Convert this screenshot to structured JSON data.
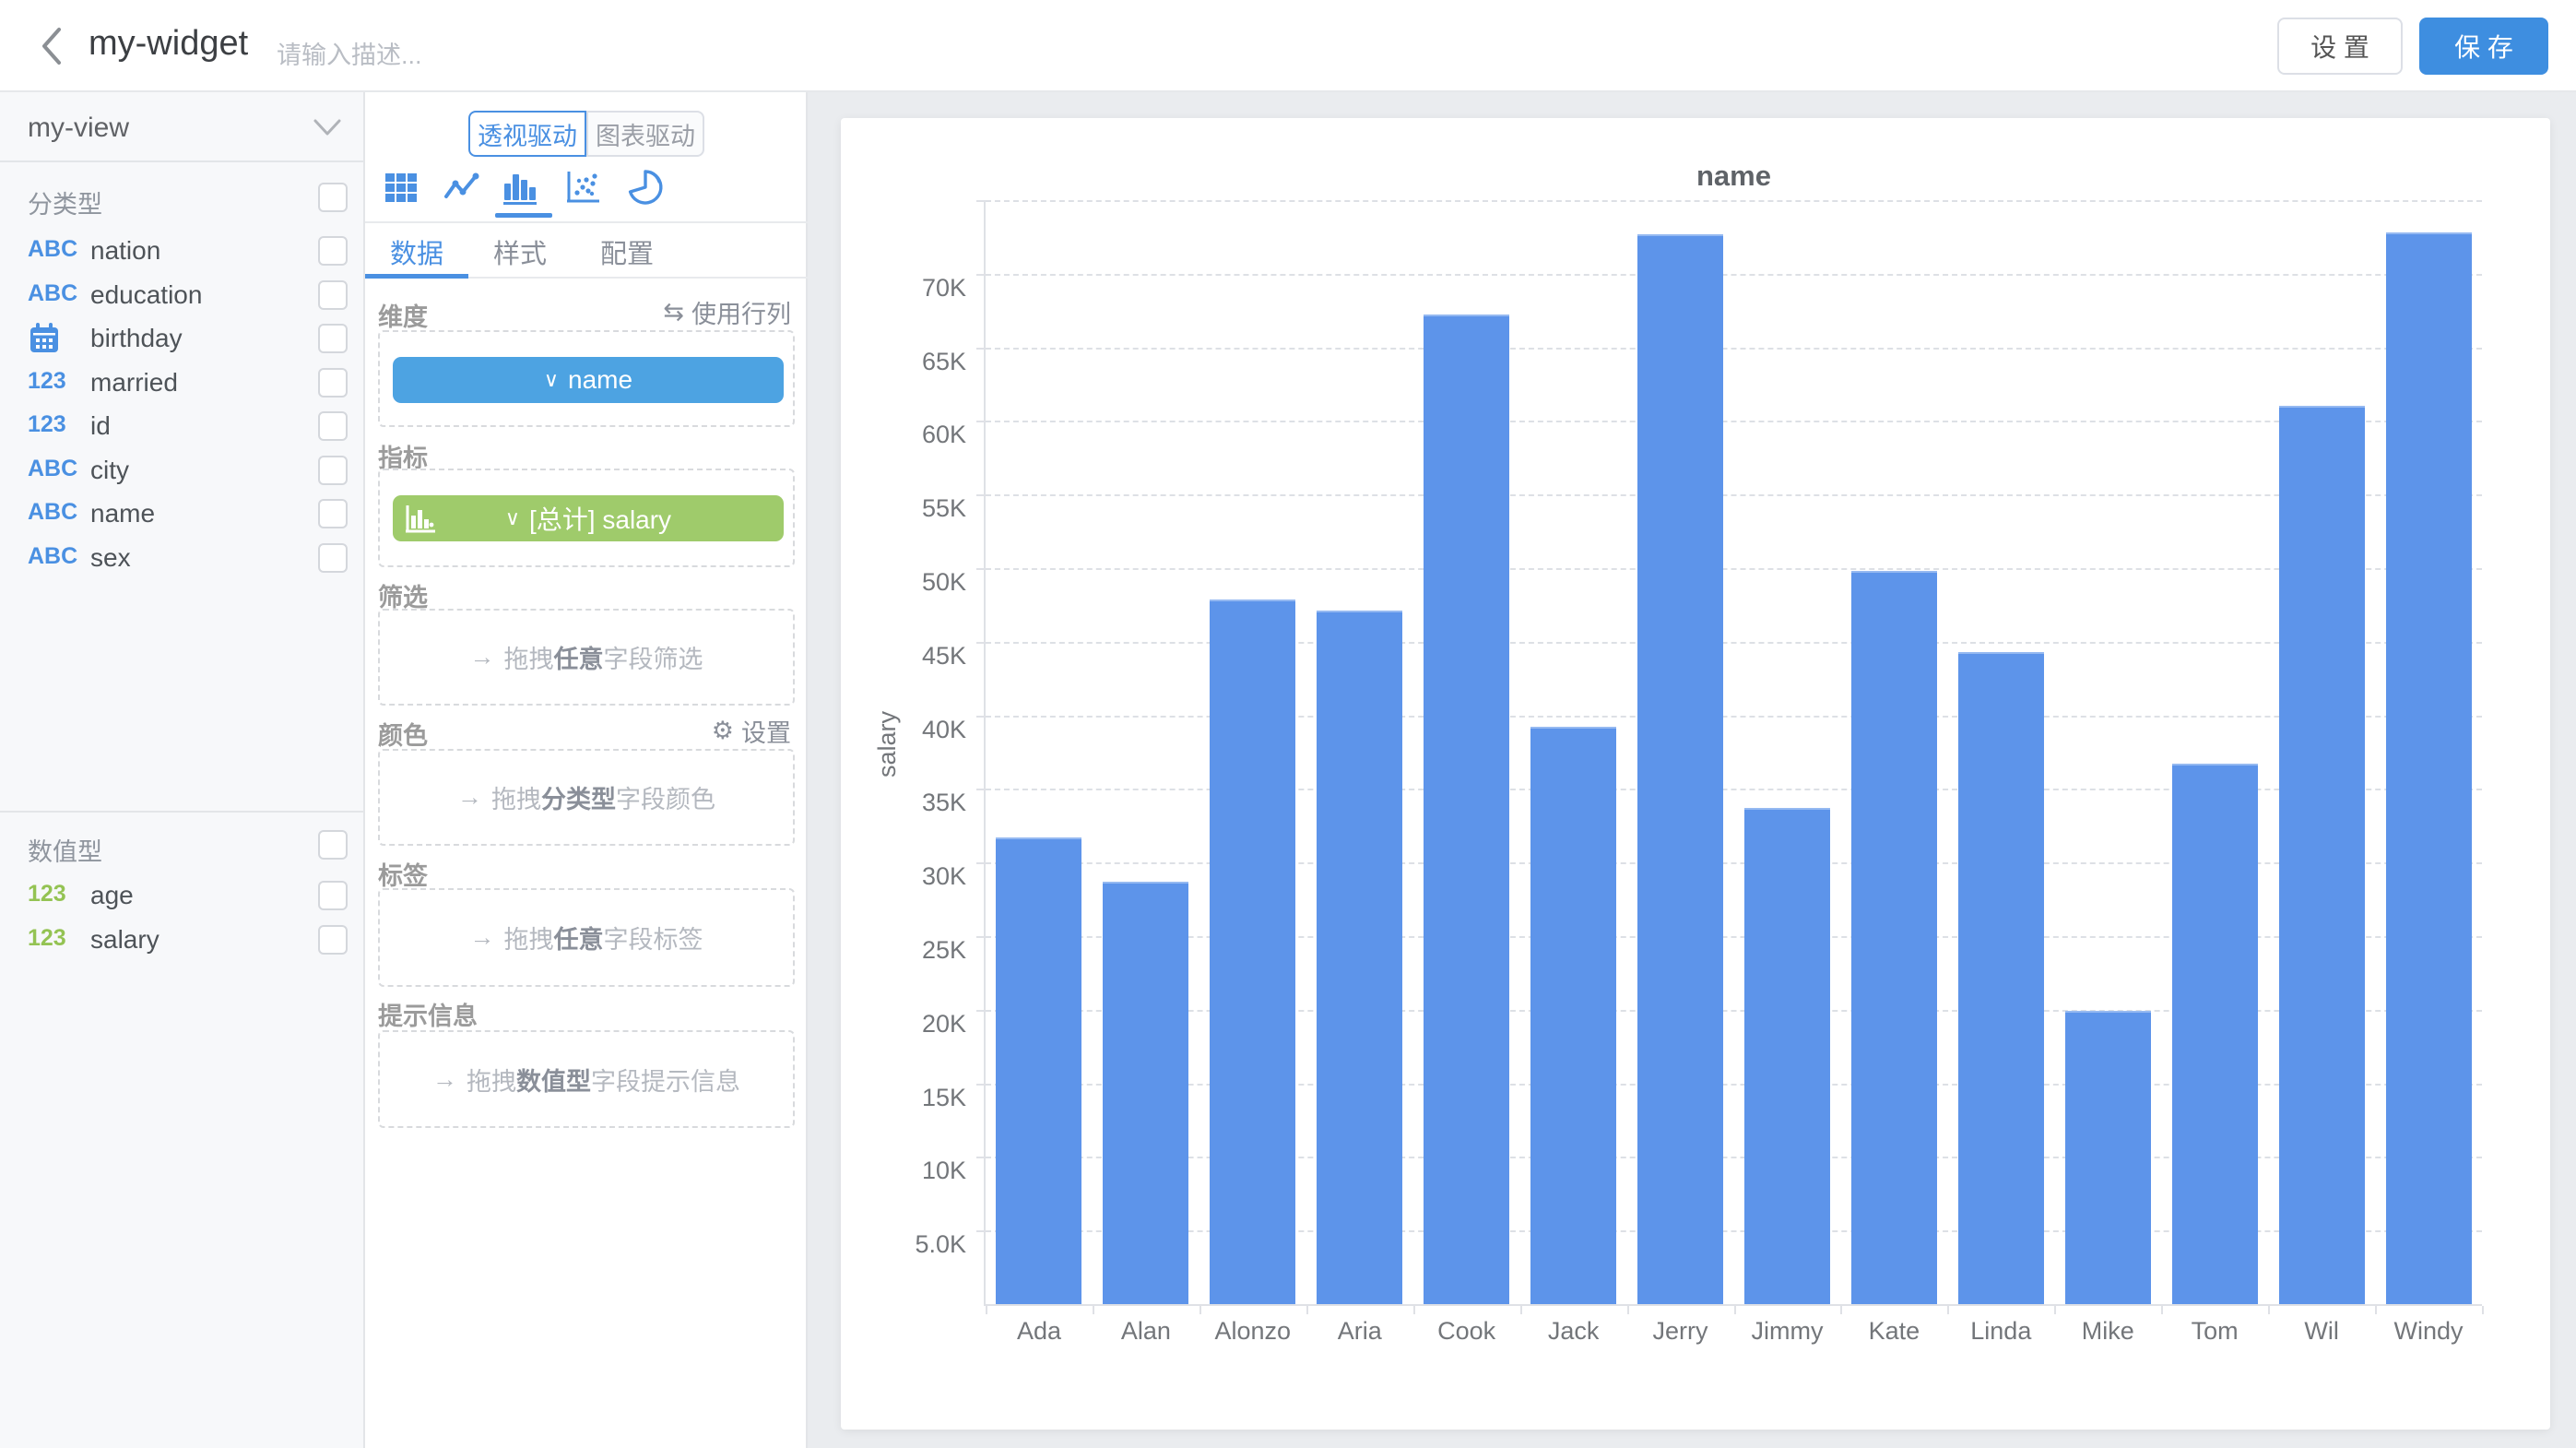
{
  "topbar": {
    "title": "my-widget",
    "description_placeholder": "请输入描述...",
    "settings_label": "设 置",
    "save_label": "保 存"
  },
  "sidebar": {
    "view_name": "my-view",
    "sections": [
      {
        "title": "分类型",
        "fields": [
          {
            "icon": "abc",
            "name": "nation"
          },
          {
            "icon": "abc",
            "name": "education"
          },
          {
            "icon": "calendar",
            "name": "birthday"
          },
          {
            "icon": "123",
            "name": "married"
          },
          {
            "icon": "123",
            "name": "id"
          },
          {
            "icon": "abc",
            "name": "city"
          },
          {
            "icon": "abc",
            "name": "name"
          },
          {
            "icon": "abc",
            "name": "sex"
          }
        ]
      },
      {
        "title": "数值型",
        "fields": [
          {
            "icon": "123g",
            "name": "age"
          },
          {
            "icon": "123g",
            "name": "salary"
          }
        ]
      }
    ]
  },
  "panel": {
    "mode_tabs": [
      {
        "label": "透视驱动",
        "active": true
      },
      {
        "label": "图表驱动",
        "active": false
      }
    ],
    "chart_types": [
      "table",
      "line",
      "bar",
      "scatter",
      "pie"
    ],
    "selected_chart_type": "bar",
    "tabs": [
      {
        "label": "数据",
        "active": true
      },
      {
        "label": "样式",
        "active": false
      },
      {
        "label": "配置",
        "active": false
      }
    ],
    "sections": {
      "dimension": {
        "label": "维度",
        "action": "使用行列",
        "action_icon": "⇆",
        "chip": "name",
        "chip_caret": "∨"
      },
      "measure": {
        "label": "指标",
        "chip": "[总计] salary",
        "chip_caret": "∨"
      },
      "filter": {
        "label": "筛选",
        "hint_arrow": "→",
        "hint_pre": "拖拽",
        "hint_em": "任意",
        "hint_post": "字段筛选"
      },
      "color": {
        "label": "颜色",
        "action": "设置",
        "action_icon": "⚙",
        "hint_arrow": "→",
        "hint_pre": "拖拽",
        "hint_em": "分类型",
        "hint_post": "字段颜色"
      },
      "label": {
        "label": "标签",
        "hint_arrow": "→",
        "hint_pre": "拖拽",
        "hint_em": "任意",
        "hint_post": "字段标签"
      },
      "tooltip": {
        "label": "提示信息",
        "hint_arrow": "→",
        "hint_pre": "拖拽",
        "hint_em": "数值型",
        "hint_post": "字段提示信息"
      }
    }
  },
  "chart_data": {
    "type": "bar",
    "title": "name",
    "xlabel": "name",
    "ylabel": "salary",
    "categories": [
      "Ada",
      "Alan",
      "Alonzo",
      "Aria",
      "Cook",
      "Jack",
      "Jerry",
      "Jimmy",
      "Kate",
      "Linda",
      "Mike",
      "Tom",
      "Wil",
      "Windy"
    ],
    "values": [
      31700,
      28700,
      47900,
      47100,
      67200,
      39200,
      72700,
      33700,
      49800,
      44300,
      19900,
      36700,
      61000,
      72800
    ],
    "ylim": [
      0,
      75000
    ],
    "ytick_step": 5000,
    "ytick_labels": [
      "5.0K",
      "10K",
      "15K",
      "20K",
      "25K",
      "30K",
      "35K",
      "40K",
      "45K",
      "50K",
      "55K",
      "60K",
      "65K",
      "70K"
    ],
    "grid": "horizontal-dashed",
    "legend": "none",
    "bar_color": "#5d94ea"
  },
  "colors": {
    "accent_blue": "#4a90e2",
    "bar_fill": "#5d94ea",
    "dimension_chip": "#4da3e2",
    "measure_chip": "#9fcb6b",
    "save_button": "#3e8ee0",
    "numeric_field_icon": "#94c353",
    "page_background": "#eaecef",
    "axis_text": "#73767a"
  }
}
